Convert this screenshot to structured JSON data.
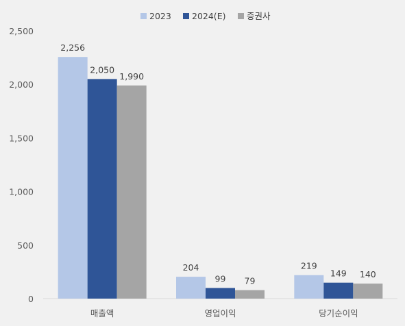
{
  "chart_data": {
    "type": "bar",
    "categories": [
      "매출액",
      "영업이익",
      "당기순이익"
    ],
    "series": [
      {
        "name": "2023",
        "values": [
          2256,
          204,
          219
        ],
        "color": "#b4c7e7"
      },
      {
        "name": "2024(E)",
        "values": [
          2050,
          99,
          149
        ],
        "color": "#2f5597"
      },
      {
        "name": "증권사",
        "values": [
          1990,
          79,
          140
        ],
        "color": "#a5a5a5"
      }
    ],
    "value_labels": [
      [
        "2,256",
        "2,050",
        "1,990"
      ],
      [
        "204",
        "99",
        "79"
      ],
      [
        "219",
        "149",
        "140"
      ]
    ],
    "y_ticks": [
      0,
      500,
      1000,
      1500,
      2000,
      2500
    ],
    "y_tick_labels": [
      "0",
      "500",
      "1,000",
      "1,500",
      "2,000",
      "2,500"
    ],
    "ylim": [
      0,
      2500
    ],
    "grid": false,
    "legend_position": "top-center",
    "title": "",
    "xlabel": "",
    "ylabel": ""
  }
}
